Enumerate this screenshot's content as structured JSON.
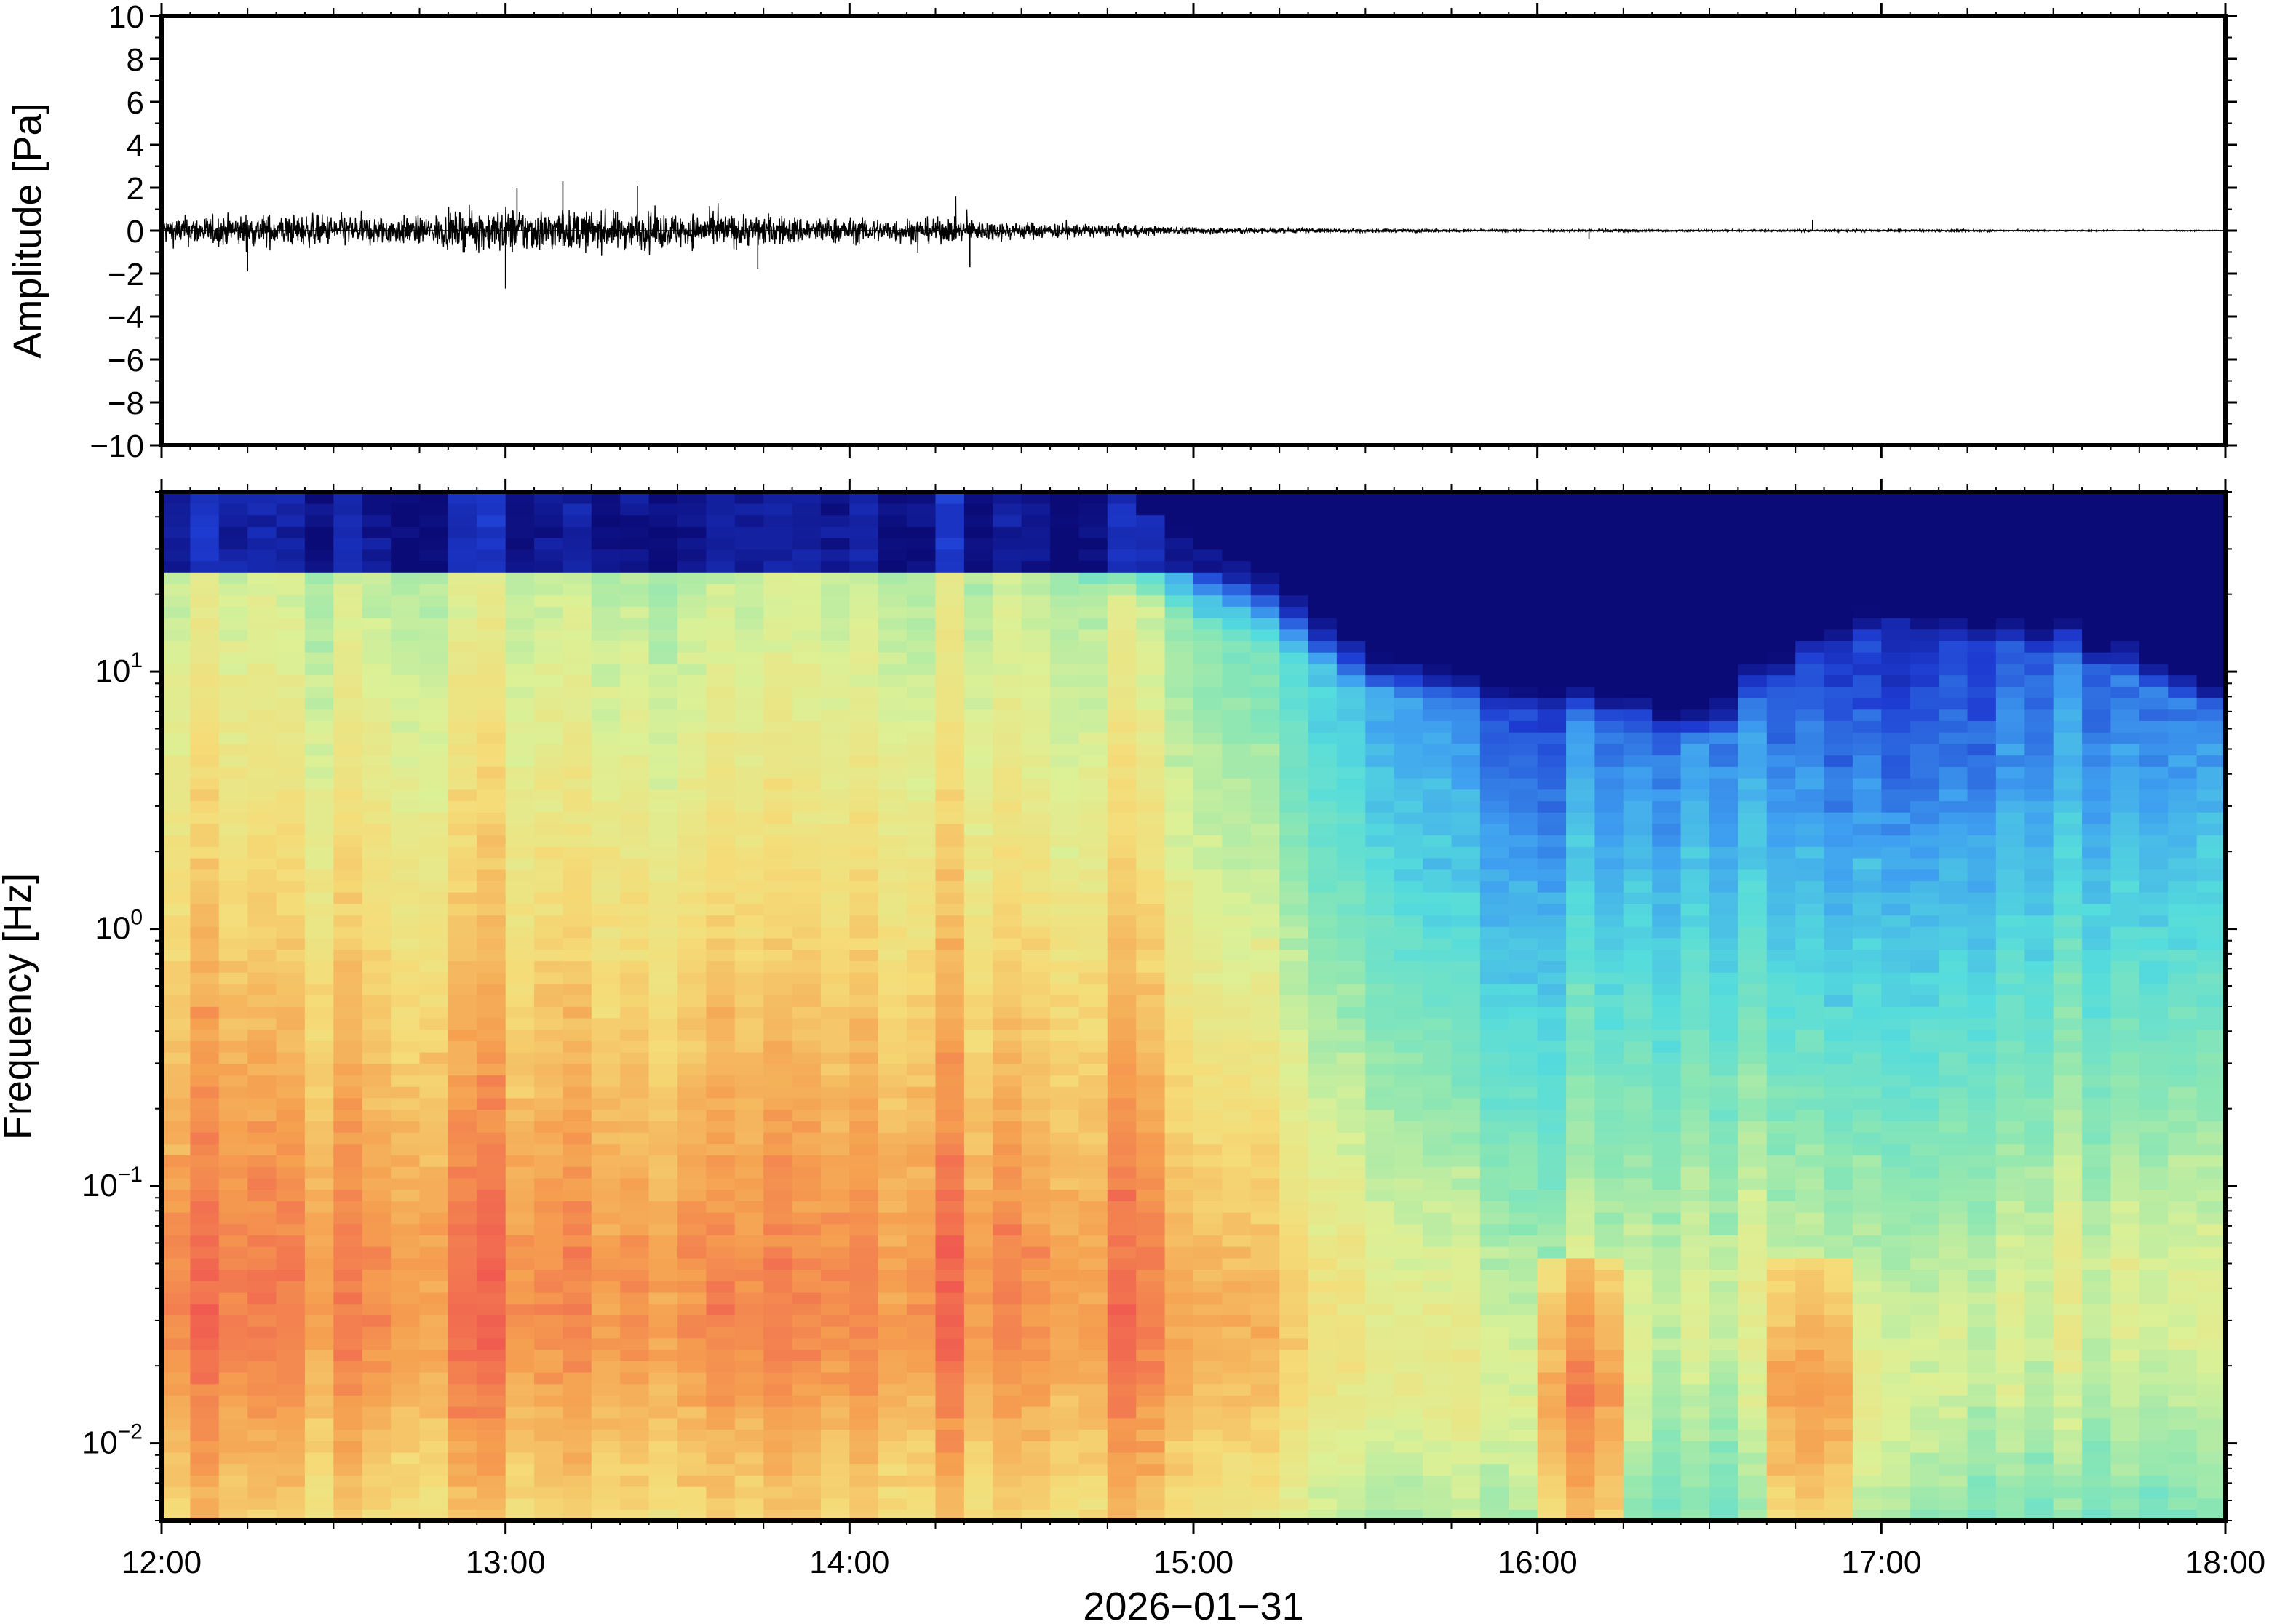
{
  "chart_data": [
    {
      "type": "line",
      "panel": "waveform",
      "ylabel": "Amplitude [Pa]",
      "xlabel": "",
      "ylim": [
        -10,
        10
      ],
      "yticks": [
        -10,
        -8,
        -6,
        -4,
        -2,
        0,
        2,
        4,
        6,
        8,
        10
      ],
      "ytick_labels": [
        "−10",
        "−8",
        "−6",
        "−4",
        "−2",
        "0",
        "2",
        "4",
        "6",
        "8",
        "10"
      ],
      "xlim": [
        "12:00",
        "18:00"
      ],
      "grid": false,
      "series": [
        {
          "color": "#000000",
          "envelope": {
            "x_hours": [
              12.0,
              12.25,
              12.5,
              12.75,
              13.0,
              13.25,
              13.5,
              13.75,
              14.0,
              14.25,
              14.5,
              14.75,
              15.0,
              15.25,
              15.5,
              15.75,
              16.0,
              16.25,
              16.5,
              16.75,
              17.0,
              17.25,
              17.5,
              17.75,
              18.0
            ],
            "amplitude": [
              0.8,
              0.9,
              0.9,
              0.8,
              1.3,
              1.1,
              1.0,
              0.9,
              0.7,
              0.7,
              0.5,
              0.35,
              0.2,
              0.15,
              0.1,
              0.07,
              0.06,
              0.08,
              0.05,
              0.06,
              0.06,
              0.06,
              0.04,
              0.03,
              0.03
            ]
          },
          "peaks": [
            {
              "x": "13:00",
              "y": -2.7
            },
            {
              "x": "13:02",
              "y": 2.0
            },
            {
              "x": "13:10",
              "y": 2.3
            },
            {
              "x": "13:23",
              "y": 2.1
            },
            {
              "x": "12:15",
              "y": -1.9
            },
            {
              "x": "13:44",
              "y": -1.8
            },
            {
              "x": "14:21",
              "y": -1.7
            },
            {
              "x": "16:09",
              "y": -0.4
            },
            {
              "x": "16:48",
              "y": 0.5
            }
          ]
        }
      ]
    },
    {
      "type": "heatmap",
      "panel": "spectrogram",
      "ylabel": "Frequency [Hz]",
      "xlabel": "2026−01−31",
      "yscale": "log",
      "ylim": [
        0.005,
        50
      ],
      "yticks": [
        0.01,
        0.1,
        1,
        10
      ],
      "ytick_labels": [
        {
          "base": "10",
          "exp": "−2"
        },
        {
          "base": "10",
          "exp": "−1"
        },
        {
          "base": "10",
          "exp": "0"
        },
        {
          "base": "10",
          "exp": "1"
        }
      ],
      "xlim": [
        "12:00",
        "18:00"
      ],
      "xticks": [
        "12:00",
        "13:00",
        "14:00",
        "15:00",
        "16:00",
        "17:00",
        "18:00"
      ],
      "colormap": "rainbow (blue low power → red high power)",
      "colormap_stops": [
        "#0b0b78",
        "#1e3cd2",
        "#3fa0f0",
        "#55dcdc",
        "#8ae6b4",
        "#dcf096",
        "#f5dc78",
        "#f5a050",
        "#f05a50"
      ],
      "description_values": {
        "time_hours": [
          12.0,
          12.5,
          13.0,
          13.5,
          14.0,
          14.5,
          15.0,
          15.5,
          16.0,
          16.5,
          17.0,
          17.5,
          18.0
        ],
        "peak_power_band_hz": [
          0.05,
          0.05,
          0.05,
          0.05,
          0.05,
          0.05,
          0.04,
          0.04,
          0.02,
          0.05,
          0.02,
          0.05,
          0.05
        ],
        "upper_cutoff_hz": [
          30,
          30,
          30,
          30,
          28,
          25,
          15,
          8,
          7,
          5,
          15,
          12,
          6
        ]
      }
    }
  ]
}
